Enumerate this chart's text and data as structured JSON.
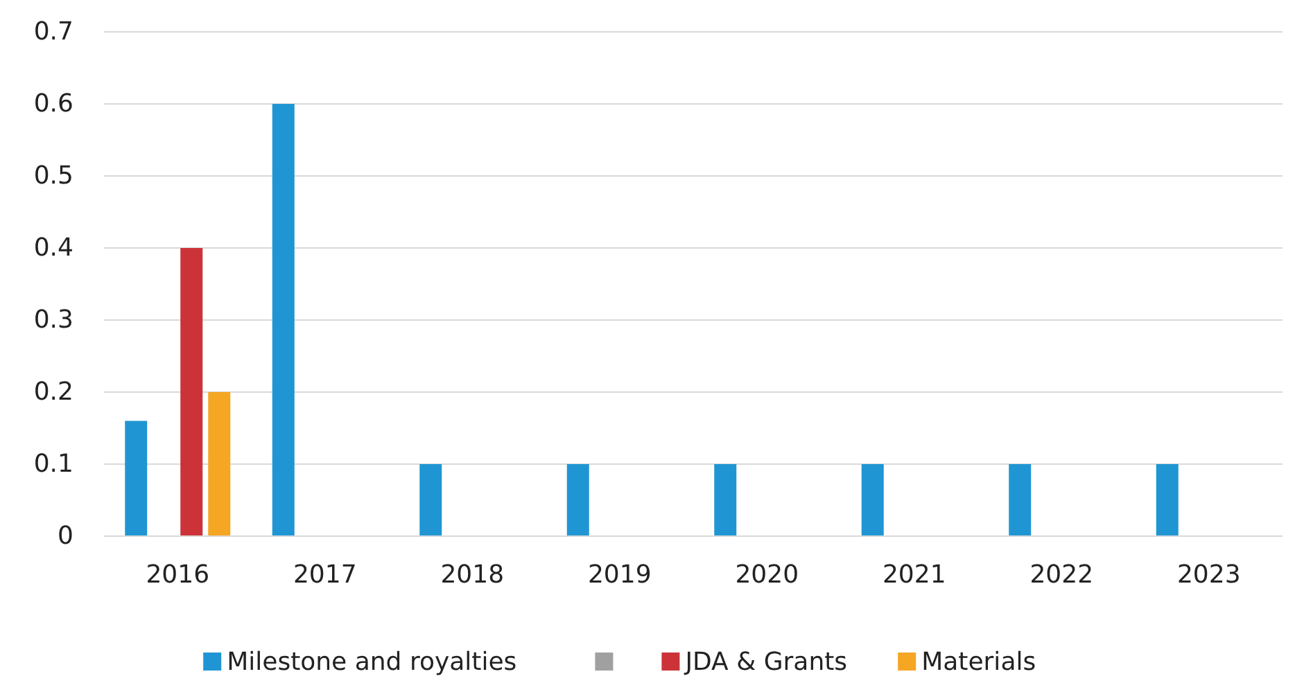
{
  "chart_data": {
    "type": "bar",
    "categories": [
      "2016",
      "2017",
      "2018",
      "2019",
      "2020",
      "2021",
      "2022",
      "2023"
    ],
    "series": [
      {
        "name": "Milestone and royalties",
        "color": "#1f96d3",
        "values": [
          0.16,
          0.6,
          0.1,
          0.1,
          0.1,
          0.1,
          0.1,
          0.1
        ]
      },
      {
        "color": "#a0a0a0",
        "values": [
          0,
          0,
          0,
          0,
          0,
          0,
          0,
          0
        ]
      },
      {
        "name": "JDA & Grants",
        "color": "#cc3338",
        "values": [
          0.4,
          0,
          0,
          0,
          0,
          0,
          0,
          0
        ]
      },
      {
        "name": "Materials",
        "color": "#f5a623",
        "values": [
          0.2,
          0,
          0,
          0,
          0,
          0,
          0,
          0
        ]
      }
    ],
    "ylim": [
      0,
      0.7
    ],
    "yticks": [
      0,
      0.1,
      0.2,
      0.3,
      0.4,
      0.5,
      0.6,
      0.7
    ],
    "grid": "y",
    "legend": "bottom"
  }
}
